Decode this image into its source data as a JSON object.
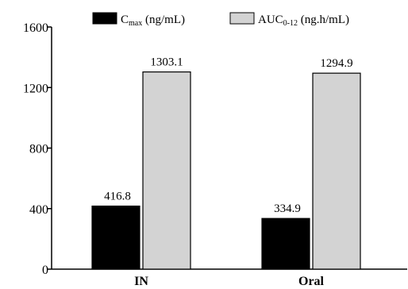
{
  "chart_data": {
    "type": "bar",
    "categories": [
      "IN",
      "Oral"
    ],
    "series": [
      {
        "name_main": "C",
        "name_sub": "max",
        "name_unit": " (ng/mL)",
        "color": "#000000",
        "values": [
          416.8,
          334.9
        ],
        "labels": [
          "416.8",
          "334.9"
        ]
      },
      {
        "name_main": "AUC",
        "name_sub": "0-12",
        "name_unit": " (ng.h/mL)",
        "color": "#d3d3d3",
        "values": [
          1303.1,
          1294.9
        ],
        "labels": [
          "1303.1",
          "1294.9"
        ]
      }
    ],
    "ylim": [
      0,
      1600
    ],
    "yticks": [
      0,
      400,
      800,
      1200,
      1600
    ],
    "ytick_labels": [
      "0",
      "400",
      "800",
      "1200",
      "1600"
    ],
    "legend_position": "top",
    "grid": false
  }
}
